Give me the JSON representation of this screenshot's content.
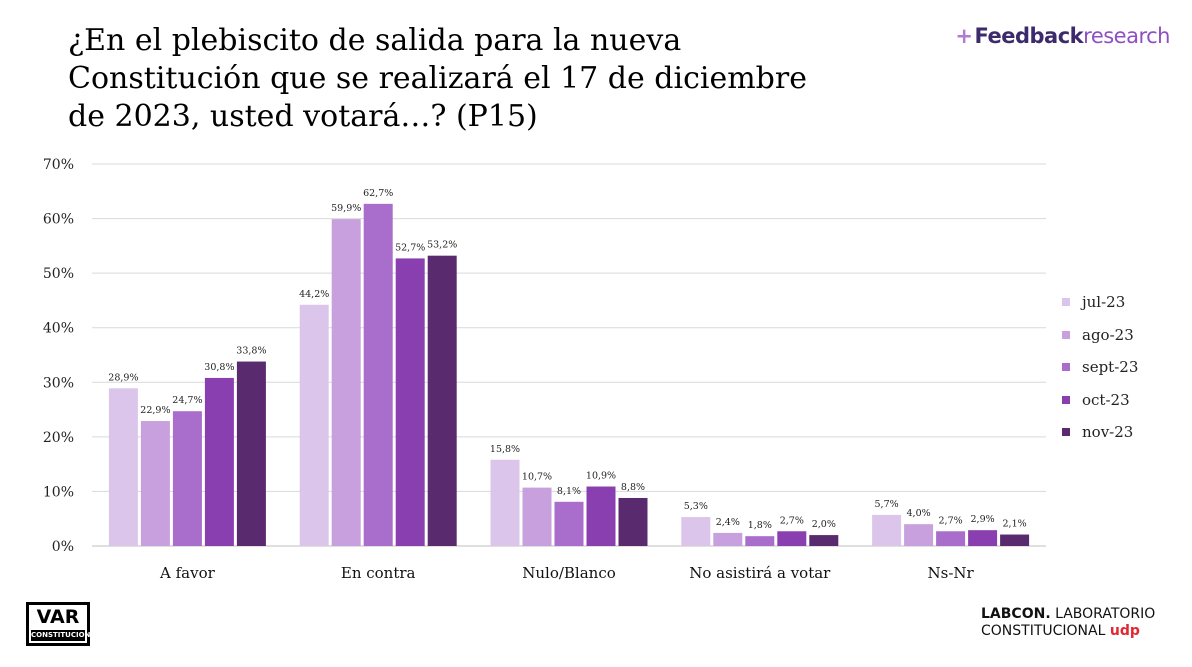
{
  "title": "¿En el plebiscito de salida para la nueva Constitución que se realizará el 17 de diciembre de 2023, usted votará…? (P15)",
  "brand": {
    "part1": "Feedback",
    "part2": "research"
  },
  "logo_var": {
    "line1": "VAR",
    "line2": "CONSTITUCIONAL"
  },
  "labcon": {
    "line1_bold": "LABCON.",
    "line1_rest": " LABORATORIO",
    "line2": "CONSTITUCIONAL",
    "line2_mark": "udp"
  },
  "chart_data": {
    "type": "bar",
    "title": "¿En el plebiscito de salida para la nueva Constitución que se realizará el 17 de diciembre de 2023, usted votará…? (P15)",
    "categories": [
      "A favor",
      "En contra",
      "Nulo/Blanco",
      "No asistirá a votar",
      "Ns-Nr"
    ],
    "series": [
      {
        "name": "jul-23",
        "color": "#dcc5eb",
        "values": [
          28.9,
          44.2,
          15.8,
          5.3,
          5.7
        ],
        "labels": [
          "28,9%",
          "44,2%",
          "15,8%",
          "5,3%",
          "5,7%"
        ]
      },
      {
        "name": "ago-23",
        "color": "#c9a0de",
        "values": [
          22.9,
          59.9,
          10.7,
          2.4,
          4.0
        ],
        "labels": [
          "22,9%",
          "59,9%",
          "10,7%",
          "2,4%",
          "4,0%"
        ]
      },
      {
        "name": "sept-23",
        "color": "#a96dcc",
        "values": [
          24.7,
          62.7,
          8.1,
          1.8,
          2.7
        ],
        "labels": [
          "24,7%",
          "62,7%",
          "8,1%",
          "1,8%",
          "2,7%"
        ]
      },
      {
        "name": "oct-23",
        "color": "#8a3fb0",
        "values": [
          30.8,
          52.7,
          10.9,
          2.7,
          2.9
        ],
        "labels": [
          "30,8%",
          "52,7%",
          "10,9%",
          "2,7%",
          "2,9%"
        ]
      },
      {
        "name": "nov-23",
        "color": "#5a2a6e",
        "values": [
          33.8,
          53.2,
          8.8,
          2.0,
          2.1
        ],
        "labels": [
          "33,8%",
          "53,2%",
          "8,8%",
          "2,0%",
          "2,1%"
        ]
      }
    ],
    "y_ticks": [
      "0%",
      "10%",
      "20%",
      "30%",
      "40%",
      "50%",
      "60%",
      "70%"
    ],
    "ylim": [
      0,
      70
    ],
    "grid": true,
    "legend_position": "right"
  }
}
